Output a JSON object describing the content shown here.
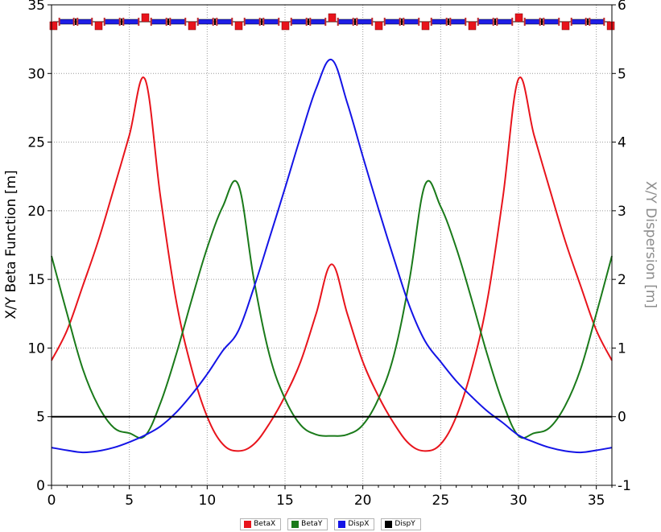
{
  "chart_data": {
    "type": "line",
    "title": "",
    "xlabel": "",
    "ylabel": "X/Y Beta Function [m]",
    "ylabel_right": "X/Y Dispersion [m]",
    "xlim": [
      0,
      36
    ],
    "ylim": [
      0,
      35
    ],
    "ylim_right": [
      -1,
      6
    ],
    "grid": true,
    "legend_position": "bottom-center",
    "x_ticks": [
      "0",
      "5",
      "10",
      "15",
      "20",
      "25",
      "30",
      "35"
    ],
    "y_ticks": [
      "0",
      "5",
      "10",
      "15",
      "20",
      "25",
      "30",
      "35"
    ],
    "y_ticks_right": [
      "-1",
      "0",
      "1",
      "2",
      "3",
      "4",
      "5",
      "6"
    ],
    "series": [
      {
        "name": "BetaX",
        "axis": "left",
        "color": "#e8141c",
        "x": [
          0,
          1,
          2,
          3,
          4,
          5,
          6,
          7,
          8,
          9,
          10,
          11,
          12,
          13,
          14,
          15,
          16,
          17,
          18,
          19,
          20,
          21,
          22,
          23,
          24,
          25,
          26,
          27,
          28,
          29,
          30,
          31,
          32,
          33,
          34,
          35,
          36
        ],
        "values": [
          9.1,
          11.3,
          14.5,
          17.8,
          21.6,
          25.5,
          29.6,
          21.0,
          13.5,
          8.5,
          5.0,
          3.0,
          2.5,
          3.0,
          4.5,
          6.5,
          9.0,
          12.5,
          16.1,
          12.5,
          9.0,
          6.5,
          4.5,
          3.0,
          2.5,
          3.0,
          5.0,
          8.5,
          13.5,
          21.0,
          29.6,
          25.5,
          21.6,
          17.8,
          14.5,
          11.3,
          9.1
        ]
      },
      {
        "name": "BetaY",
        "axis": "left",
        "color": "#1a7a1a",
        "x": [
          0,
          1,
          2,
          3,
          4,
          5,
          6,
          7,
          8,
          9,
          10,
          11,
          12,
          13,
          14,
          15,
          16,
          17,
          18,
          19,
          20,
          21,
          22,
          23,
          24,
          25,
          26,
          27,
          28,
          29,
          30,
          31,
          32,
          33,
          34,
          35,
          36
        ],
        "values": [
          16.7,
          12.5,
          8.5,
          5.8,
          4.2,
          3.8,
          3.6,
          6.0,
          9.5,
          13.5,
          17.3,
          20.3,
          21.9,
          15.0,
          9.5,
          6.3,
          4.4,
          3.7,
          3.6,
          3.7,
          4.4,
          6.3,
          9.5,
          15.0,
          21.9,
          20.3,
          17.3,
          13.5,
          9.5,
          6.0,
          3.6,
          3.8,
          4.2,
          5.8,
          8.5,
          12.5,
          16.7
        ]
      },
      {
        "name": "DispX",
        "axis": "right",
        "color": "#1414e6",
        "x": [
          0,
          1,
          2,
          3,
          4,
          5,
          6,
          7,
          8,
          9,
          10,
          11,
          12,
          13,
          14,
          15,
          16,
          17,
          18,
          19,
          20,
          21,
          22,
          23,
          24,
          25,
          26,
          27,
          28,
          29,
          30,
          31,
          32,
          33,
          34,
          35,
          36
        ],
        "values": [
          -0.45,
          -0.49,
          -0.52,
          -0.5,
          -0.45,
          -0.37,
          -0.27,
          -0.14,
          0.06,
          0.32,
          0.62,
          0.96,
          1.25,
          1.88,
          2.6,
          3.33,
          4.08,
          4.78,
          5.2,
          4.57,
          3.79,
          3.03,
          2.3,
          1.61,
          1.1,
          0.8,
          0.52,
          0.29,
          0.08,
          -0.09,
          -0.27,
          -0.37,
          -0.45,
          -0.5,
          -0.52,
          -0.49,
          -0.45
        ]
      },
      {
        "name": "DispY",
        "axis": "right",
        "color": "#000000",
        "x": [
          0,
          36
        ],
        "values": [
          0,
          0
        ]
      }
    ]
  },
  "lattice": {
    "magnets": [
      {
        "type": "quad",
        "s": 0.1,
        "pol": -1
      },
      {
        "type": "bend",
        "s": 1.8
      },
      {
        "type": "quad",
        "s": 3.0,
        "pol": -1
      },
      {
        "type": "bend",
        "s": 4.2
      },
      {
        "type": "quad",
        "s": 6.0,
        "pol": 1
      },
      {
        "type": "bend",
        "s": 7.8
      },
      {
        "type": "quad",
        "s": 9.0,
        "pol": -1
      },
      {
        "type": "bend",
        "s": 10.2
      },
      {
        "type": "quad",
        "s": 12.0,
        "pol": -1
      },
      {
        "type": "bend",
        "s": 13.8
      },
      {
        "type": "quad",
        "s": 15.0,
        "pol": -1
      },
      {
        "type": "bend",
        "s": 16.2
      },
      {
        "type": "quad",
        "s": 18.0,
        "pol": 1
      },
      {
        "type": "bend",
        "s": 19.8
      },
      {
        "type": "quad",
        "s": 21.0,
        "pol": -1
      },
      {
        "type": "bend",
        "s": 22.2
      },
      {
        "type": "quad",
        "s": 24.0,
        "pol": -1
      },
      {
        "type": "bend",
        "s": 25.8
      },
      {
        "type": "quad",
        "s": 27.0,
        "pol": -1
      },
      {
        "type": "bend",
        "s": 28.2
      },
      {
        "type": "quad",
        "s": 30.0,
        "pol": 1
      },
      {
        "type": "bend",
        "s": 31.8
      },
      {
        "type": "quad",
        "s": 33.0,
        "pol": -1
      },
      {
        "type": "bend",
        "s": 34.2
      },
      {
        "type": "quad",
        "s": 35.9,
        "pol": -1
      }
    ]
  }
}
